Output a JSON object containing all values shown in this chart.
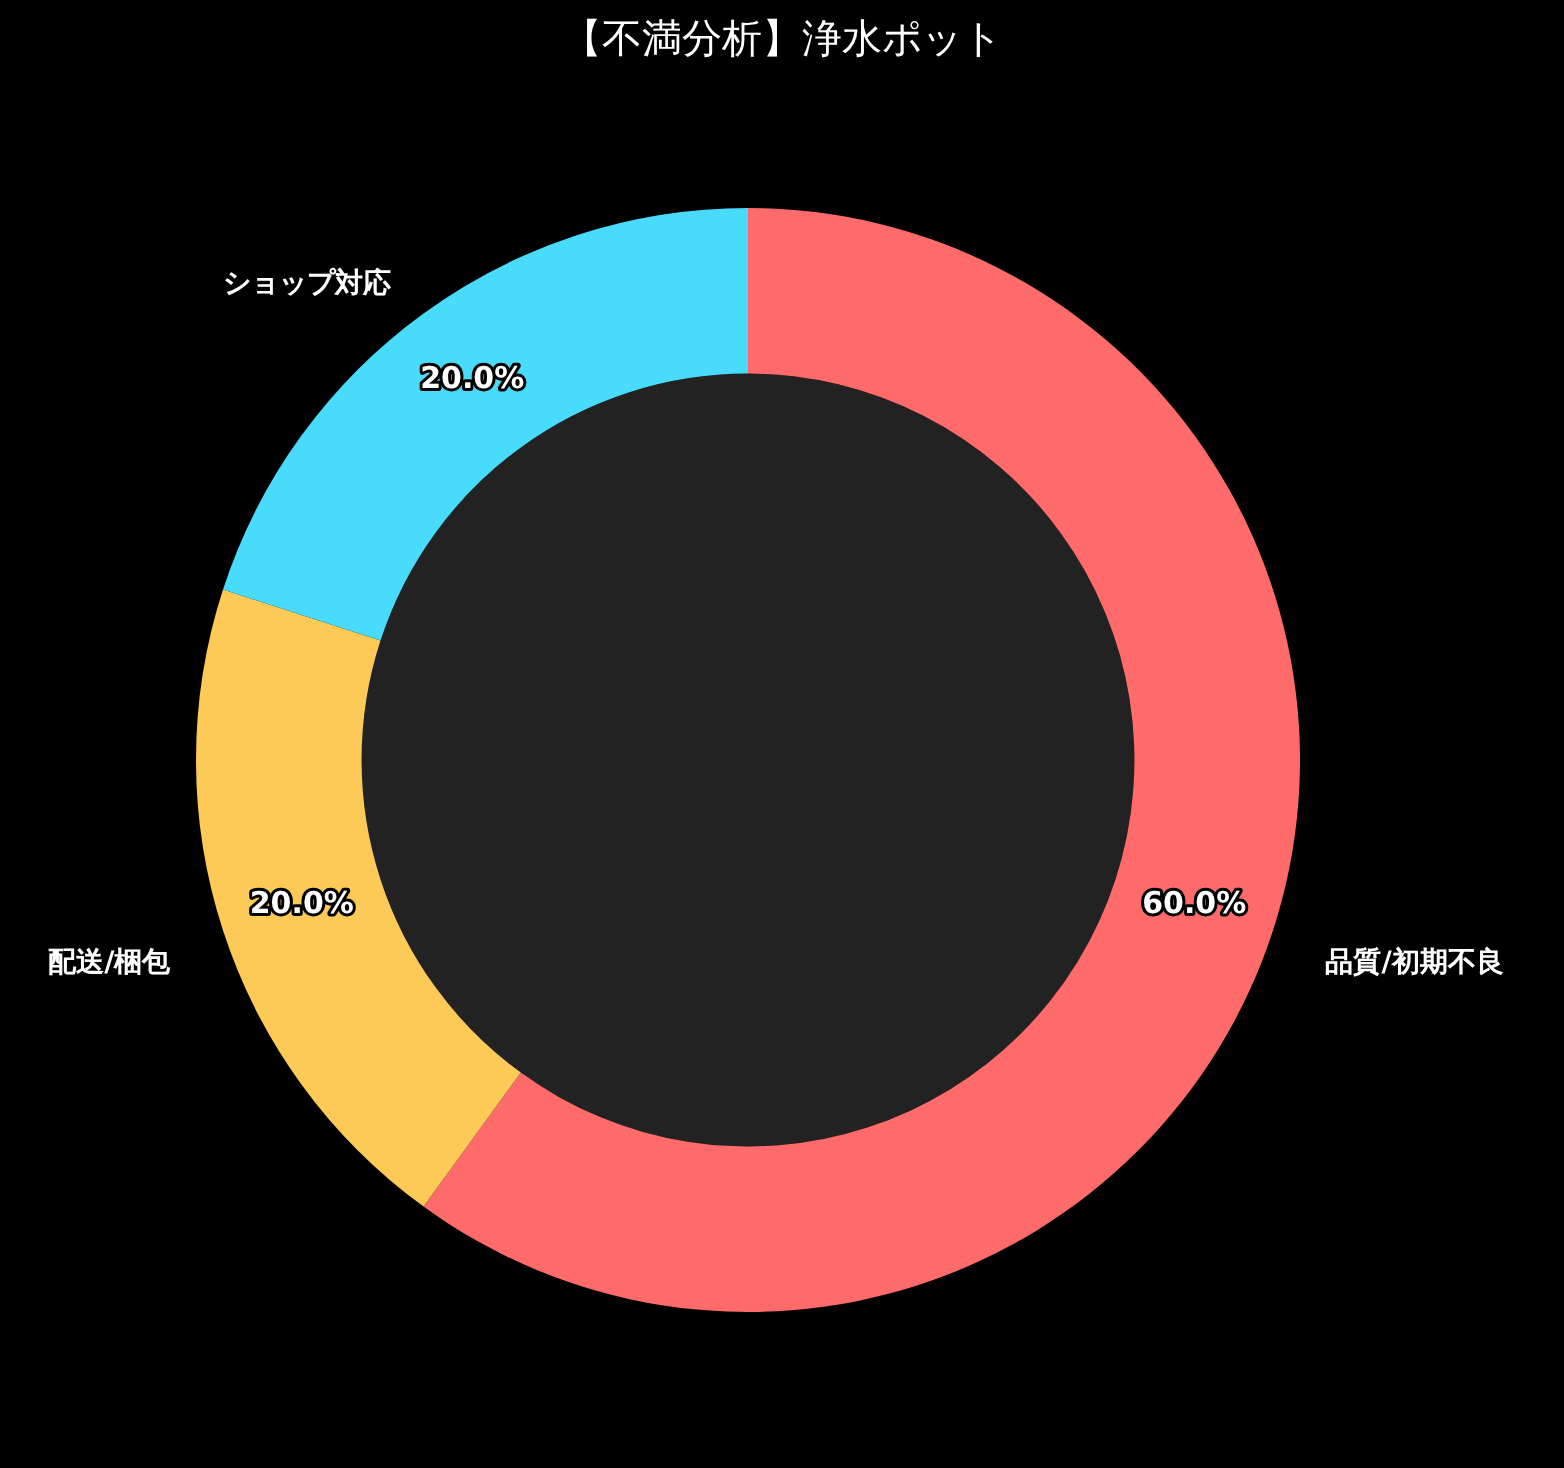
{
  "chart_data": {
    "type": "donut",
    "title": "【不満分析】浄水ポット",
    "categories": [
      "品質/初期不良",
      "配送/梱包",
      "ショップ対応"
    ],
    "values": [
      60,
      20,
      20
    ],
    "colors": [
      "#ff6b6b",
      "#feca57",
      "#48dbfb"
    ],
    "value_labels": [
      "60.0%",
      "20.0%",
      "20.0%"
    ],
    "legend": false
  }
}
